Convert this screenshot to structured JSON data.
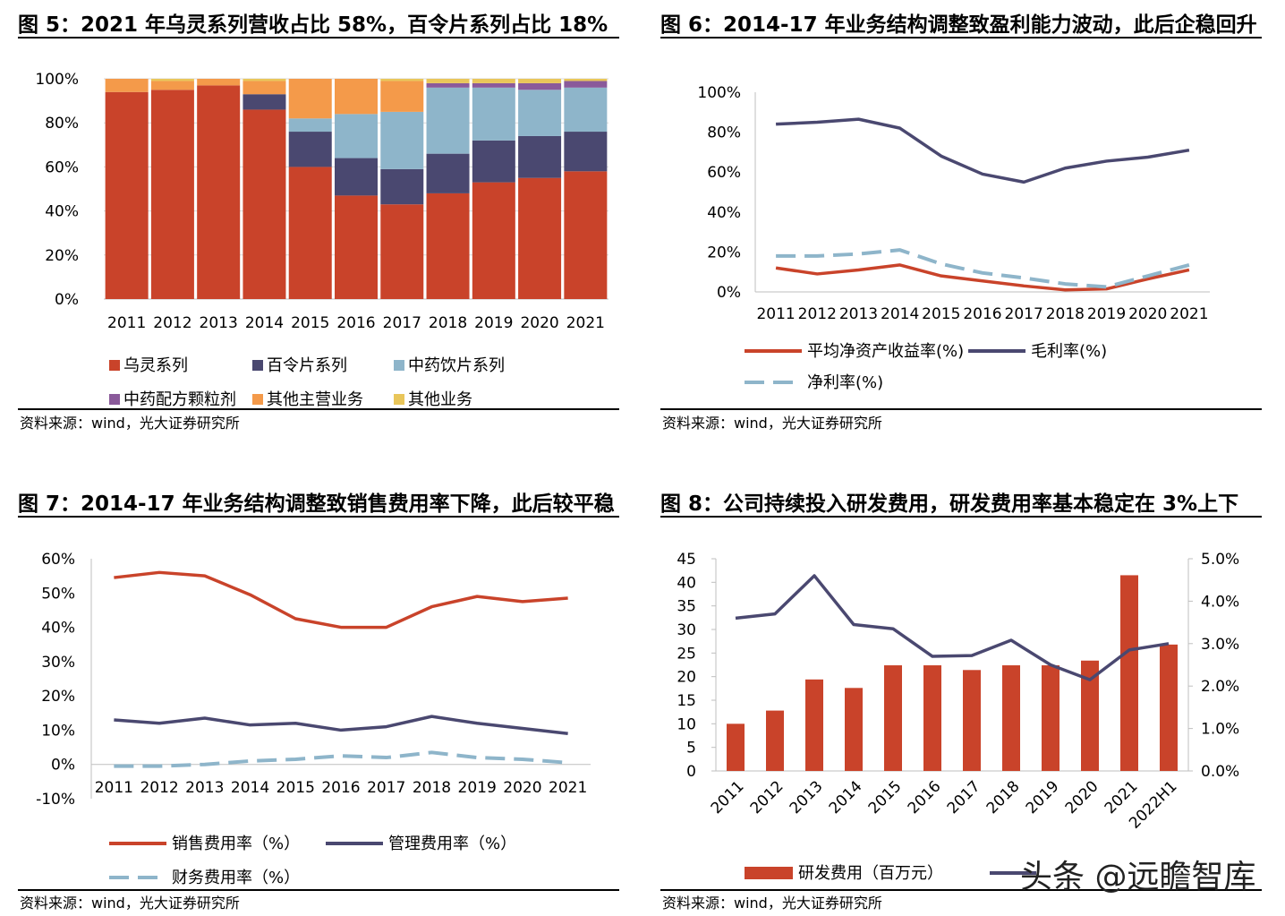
{
  "panels": [
    {
      "title": "图 5：2021 年乌灵系列营收占比 58%，百令片系列占比 18%",
      "source": "资料来源：wind，光大证券研究所"
    },
    {
      "title": "图 6：2014-17 年业务结构调整致盈利能力波动，此后企稳回升",
      "source": "资料来源：wind，光大证券研究所"
    },
    {
      "title": "图 7：2014-17 年业务结构调整致销售费用率下降，此后较平稳",
      "source": "资料来源：wind，光大证券研究所"
    },
    {
      "title": "图 8：公司持续投入研发费用，研发费用率基本稳定在 3%上下",
      "source": "资料来源：wind，光大证券研究所"
    }
  ],
  "watermark": "头条 @远瞻智库",
  "chart_data": [
    {
      "type": "bar",
      "stacked": true,
      "categories": [
        "2011",
        "2012",
        "2013",
        "2014",
        "2015",
        "2016",
        "2017",
        "2018",
        "2019",
        "2020",
        "2021"
      ],
      "yticks": [
        "0%",
        "20%",
        "40%",
        "60%",
        "80%",
        "100%"
      ],
      "ylim": [
        0,
        100
      ],
      "legend_position": "bottom",
      "series": [
        {
          "name": "乌灵系列",
          "color": "#C9432A",
          "values": [
            94,
            95,
            97,
            86,
            60,
            47,
            43,
            48,
            53,
            55,
            58
          ]
        },
        {
          "name": "百令片系列",
          "color": "#4A4870",
          "values": [
            0,
            0,
            0,
            7,
            16,
            17,
            16,
            18,
            19,
            19,
            18
          ]
        },
        {
          "name": "中药饮片系列",
          "color": "#8EB5CA",
          "values": [
            0,
            0,
            0,
            0,
            6,
            20,
            26,
            30,
            24,
            21,
            20
          ]
        },
        {
          "name": "中药配方颗粒剂",
          "color": "#8A5A9A",
          "values": [
            0,
            0,
            0,
            0,
            0,
            0,
            0,
            2,
            2,
            3,
            3
          ]
        },
        {
          "name": "其他主营业务",
          "color": "#F49A4A",
          "values": [
            6,
            4,
            3,
            6,
            18,
            16,
            14,
            0,
            0,
            0,
            0
          ]
        },
        {
          "name": "其他业务",
          "color": "#E9C65A",
          "values": [
            0,
            1,
            0,
            1,
            0,
            0,
            1,
            2,
            2,
            2,
            1
          ]
        }
      ]
    },
    {
      "type": "line",
      "categories": [
        "2011",
        "2012",
        "2013",
        "2014",
        "2015",
        "2016",
        "2017",
        "2018",
        "2019",
        "2020",
        "2021"
      ],
      "yticks": [
        "0%",
        "20%",
        "40%",
        "60%",
        "80%",
        "100%"
      ],
      "ylim": [
        0,
        100
      ],
      "legend_position": "bottom",
      "series": [
        {
          "name": "平均净资产收益率(%)",
          "color": "#C9432A",
          "dash": false,
          "values": [
            12,
            9,
            11,
            13.5,
            8,
            5.5,
            3,
            1,
            1.5,
            6.5,
            11
          ]
        },
        {
          "name": "毛利率(%)",
          "color": "#4A4870",
          "dash": false,
          "values": [
            84,
            85,
            86.5,
            82,
            68,
            59,
            55,
            62,
            65.5,
            67.5,
            71
          ]
        },
        {
          "name": "净利率(%)",
          "color": "#8EB5CA",
          "dash": true,
          "values": [
            18,
            18,
            19,
            21,
            14,
            9.5,
            7,
            4,
            2.5,
            8,
            13.5
          ]
        }
      ]
    },
    {
      "type": "line",
      "categories": [
        "2011",
        "2012",
        "2013",
        "2014",
        "2015",
        "2016",
        "2017",
        "2018",
        "2019",
        "2020",
        "2021"
      ],
      "yticks": [
        "-10%",
        "0%",
        "10%",
        "20%",
        "30%",
        "40%",
        "50%",
        "60%"
      ],
      "ylim": [
        -10,
        60
      ],
      "legend_position": "bottom",
      "series": [
        {
          "name": "销售费用率（%）",
          "color": "#C9432A",
          "dash": false,
          "values": [
            54.5,
            56,
            55,
            49.5,
            42.5,
            40,
            40,
            46,
            49,
            47.5,
            48.5
          ]
        },
        {
          "name": "管理费用率（%）",
          "color": "#4A4870",
          "dash": false,
          "values": [
            13,
            12,
            13.5,
            11.5,
            12,
            10,
            11,
            14,
            12,
            10.5,
            9
          ]
        },
        {
          "name": "财务费用率（%）",
          "color": "#8EB5CA",
          "dash": true,
          "values": [
            -0.5,
            -0.5,
            0,
            1,
            1.5,
            2.5,
            2,
            3.5,
            2,
            1.5,
            0.5
          ]
        }
      ]
    },
    {
      "type": "bar+line",
      "categories": [
        "2011",
        "2012",
        "2013",
        "2014",
        "2015",
        "2016",
        "2017",
        "2018",
        "2019",
        "2020",
        "2021",
        "2022H1"
      ],
      "yticks_left": [
        "0",
        "5",
        "10",
        "15",
        "20",
        "25",
        "30",
        "35",
        "40",
        "45"
      ],
      "ylim_left": [
        0,
        45
      ],
      "yticks_right": [
        "0.0%",
        "1.0%",
        "2.0%",
        "3.0%",
        "4.0%",
        "5.0%"
      ],
      "ylim_right": [
        0,
        5
      ],
      "legend_position": "bottom",
      "bars": {
        "name": "研发费用（百万元）",
        "color": "#C9432A",
        "values": [
          10,
          12.8,
          19.4,
          17.6,
          22.4,
          22.4,
          21.4,
          22.4,
          22.4,
          23.4,
          41.5,
          26.8
        ]
      },
      "line": {
        "color": "#4A4870",
        "values": [
          3.6,
          3.7,
          4.6,
          3.45,
          3.35,
          2.7,
          2.72,
          3.08,
          2.5,
          2.15,
          2.85,
          3.0
        ]
      }
    }
  ]
}
